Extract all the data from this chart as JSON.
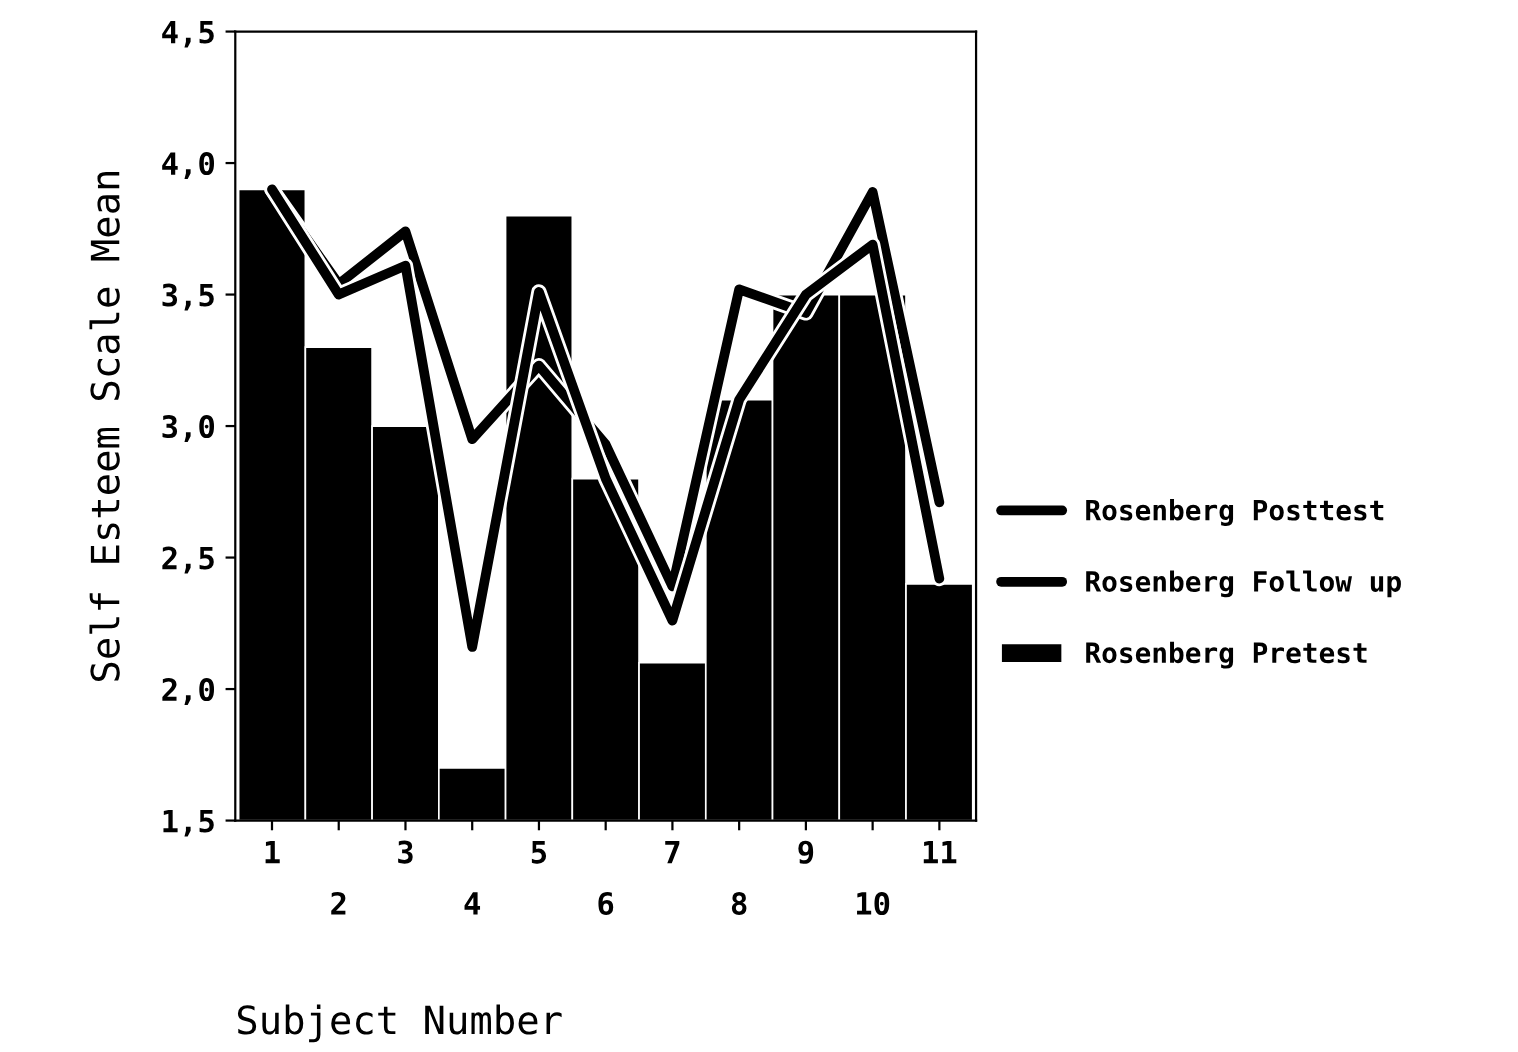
{
  "chart_data": {
    "type": "bar",
    "xlabel": "Subject Number",
    "ylabel": "Self Esteem Scale Mean",
    "categories": [
      "1",
      "2",
      "3",
      "4",
      "5",
      "6",
      "7",
      "8",
      "9",
      "10",
      "11"
    ],
    "series": [
      {
        "name": "Rosenberg Posttest",
        "type": "line",
        "color": "#000000",
        "values": [
          3.9,
          3.54,
          3.74,
          2.95,
          3.23,
          2.93,
          2.39,
          3.52,
          3.43,
          3.89,
          2.71
        ]
      },
      {
        "name": "Rosenberg Follow up",
        "type": "line",
        "color": "#000000",
        "values": [
          3.9,
          3.5,
          3.61,
          2.16,
          3.51,
          2.8,
          2.26,
          3.1,
          3.5,
          3.69,
          2.42
        ]
      },
      {
        "name": "Rosenberg Pretest",
        "type": "bar",
        "color": "#000000",
        "values": [
          3.9,
          3.3,
          3.0,
          1.7,
          3.8,
          2.8,
          2.1,
          3.1,
          3.5,
          3.5,
          2.4
        ]
      }
    ],
    "ylim": [
      1.5,
      4.5
    ],
    "yticks": [
      {
        "value": 1.5,
        "label": "1,5"
      },
      {
        "value": 2.0,
        "label": "2,0"
      },
      {
        "value": 2.5,
        "label": "2,5"
      },
      {
        "value": 3.0,
        "label": "3,0"
      },
      {
        "value": 3.5,
        "label": "3,5"
      },
      {
        "value": 4.0,
        "label": "4,0"
      },
      {
        "value": 4.5,
        "label": "4,5"
      }
    ],
    "grid": false,
    "legend": "right",
    "marker": "none",
    "line_style": "solid"
  }
}
